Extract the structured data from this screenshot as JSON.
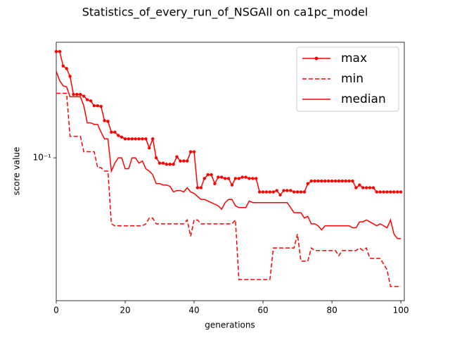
{
  "chart_data": {
    "type": "line",
    "title": "Statistics_of_every_run_of_NSGAII on ca1pc_model",
    "xlabel": "generations",
    "ylabel": "score value",
    "x": [
      0,
      1,
      2,
      3,
      4,
      5,
      6,
      7,
      8,
      9,
      10,
      11,
      12,
      13,
      14,
      15,
      16,
      17,
      18,
      19,
      20,
      21,
      22,
      23,
      24,
      25,
      26,
      27,
      28,
      29,
      30,
      31,
      32,
      33,
      34,
      35,
      36,
      37,
      38,
      39,
      40,
      41,
      42,
      43,
      44,
      45,
      46,
      47,
      48,
      49,
      50,
      51,
      52,
      53,
      54,
      55,
      56,
      57,
      58,
      59,
      60,
      61,
      62,
      63,
      64,
      65,
      66,
      67,
      68,
      69,
      70,
      71,
      72,
      73,
      74,
      75,
      76,
      77,
      78,
      79,
      80,
      81,
      82,
      83,
      84,
      85,
      86,
      87,
      88,
      89,
      90,
      91,
      92,
      93,
      94,
      95,
      96,
      97,
      98,
      99,
      100
    ],
    "xlim": [
      0,
      101
    ],
    "xticks": [
      0,
      20,
      40,
      60,
      80,
      100
    ],
    "ylim": [
      0.0253,
      0.304
    ],
    "yticks": [
      {
        "value": 0.1,
        "label": "10⁻¹"
      }
    ],
    "log_scale_y": true,
    "grid": false,
    "legend": "upper right",
    "series": [
      {
        "name": "max",
        "color": "#ff0000",
        "linestyle": "solid",
        "marker": "o",
        "values": [
          0.278,
          0.278,
          0.242,
          0.236,
          0.219,
          0.184,
          0.184,
          0.184,
          0.181,
          0.175,
          0.173,
          0.165,
          0.165,
          0.164,
          0.143,
          0.142,
          0.128,
          0.128,
          0.124,
          0.122,
          0.12,
          0.12,
          0.12,
          0.12,
          0.12,
          0.12,
          0.12,
          0.11,
          0.12,
          0.1,
          0.095,
          0.095,
          0.094,
          0.094,
          0.094,
          0.101,
          0.097,
          0.097,
          0.097,
          0.106,
          0.106,
          0.075,
          0.075,
          0.082,
          0.085,
          0.085,
          0.078,
          0.083,
          0.083,
          0.082,
          0.082,
          0.077,
          0.082,
          0.082,
          0.083,
          0.083,
          0.082,
          0.082,
          0.082,
          0.072,
          0.072,
          0.072,
          0.072,
          0.072,
          0.073,
          0.07,
          0.073,
          0.073,
          0.073,
          0.072,
          0.072,
          0.072,
          0.072,
          0.078,
          0.08,
          0.08,
          0.08,
          0.08,
          0.08,
          0.08,
          0.08,
          0.08,
          0.08,
          0.08,
          0.08,
          0.08,
          0.08,
          0.075,
          0.077,
          0.075,
          0.075,
          0.075,
          0.075,
          0.072,
          0.072,
          0.072,
          0.072,
          0.072,
          0.072,
          0.072,
          0.072
        ]
      },
      {
        "name": "min",
        "color": "#ff0000",
        "linestyle": "dashed",
        "marker": null,
        "values": [
          0.186,
          0.186,
          0.186,
          0.186,
          0.123,
          0.123,
          0.123,
          0.123,
          0.106,
          0.106,
          0.106,
          0.106,
          0.091,
          0.091,
          0.088,
          0.088,
          0.053,
          0.052,
          0.052,
          0.052,
          0.052,
          0.052,
          0.052,
          0.052,
          0.052,
          0.052,
          0.053,
          0.056,
          0.056,
          0.053,
          0.053,
          0.053,
          0.053,
          0.053,
          0.053,
          0.053,
          0.053,
          0.053,
          0.055,
          0.047,
          0.055,
          0.055,
          0.053,
          0.053,
          0.053,
          0.053,
          0.053,
          0.053,
          0.053,
          0.053,
          0.053,
          0.053,
          0.055,
          0.031,
          0.031,
          0.031,
          0.031,
          0.031,
          0.031,
          0.031,
          0.031,
          0.031,
          0.031,
          0.042,
          0.042,
          0.042,
          0.042,
          0.042,
          0.042,
          0.042,
          0.048,
          0.037,
          0.037,
          0.037,
          0.042,
          0.041,
          0.041,
          0.041,
          0.041,
          0.041,
          0.041,
          0.041,
          0.039,
          0.041,
          0.041,
          0.041,
          0.041,
          0.041,
          0.042,
          0.041,
          0.042,
          0.038,
          0.038,
          0.038,
          0.038,
          0.036,
          0.034,
          0.029,
          0.029,
          0.029,
          0.029
        ]
      },
      {
        "name": "median",
        "color": "#ff0000",
        "linestyle": "solid",
        "marker": null,
        "values": [
          0.23,
          0.21,
          0.2,
          0.198,
          0.18,
          0.18,
          0.18,
          0.18,
          0.165,
          0.14,
          0.14,
          0.138,
          0.138,
          0.128,
          0.12,
          0.12,
          0.088,
          0.095,
          0.1,
          0.1,
          0.09,
          0.09,
          0.1,
          0.1,
          0.095,
          0.097,
          0.09,
          0.088,
          0.085,
          0.078,
          0.078,
          0.077,
          0.077,
          0.076,
          0.072,
          0.073,
          0.073,
          0.072,
          0.075,
          0.072,
          0.071,
          0.069,
          0.067,
          0.067,
          0.066,
          0.065,
          0.064,
          0.063,
          0.061,
          0.065,
          0.067,
          0.067,
          0.063,
          0.062,
          0.062,
          0.062,
          0.066,
          0.065,
          0.065,
          0.065,
          0.065,
          0.065,
          0.065,
          0.065,
          0.065,
          0.065,
          0.065,
          0.065,
          0.062,
          0.059,
          0.059,
          0.059,
          0.056,
          0.057,
          0.053,
          0.053,
          0.052,
          0.05,
          0.052,
          0.052,
          0.052,
          0.052,
          0.052,
          0.052,
          0.052,
          0.052,
          0.051,
          0.051,
          0.054,
          0.054,
          0.055,
          0.054,
          0.053,
          0.052,
          0.053,
          0.052,
          0.051,
          0.055,
          0.048,
          0.046,
          0.046
        ]
      }
    ]
  }
}
